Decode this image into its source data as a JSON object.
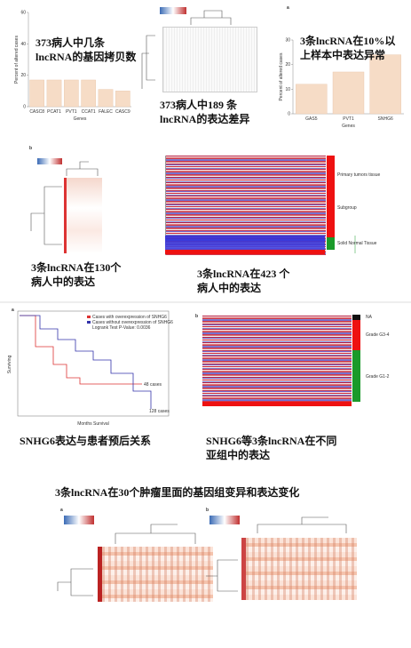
{
  "charts": [
    {
      "type": "bar",
      "y_label": "Percent of altered cases",
      "x_label": "Genes",
      "categories": [
        "CASC8",
        "PCAT1",
        "PVT1",
        "CCAT1",
        "FALEC",
        "CASC9"
      ],
      "values": [
        17,
        17,
        17,
        17,
        11,
        10
      ],
      "color": "#f6dcc6",
      "ylim": [
        0,
        60
      ],
      "yticks": [
        0,
        20,
        40,
        60
      ]
    },
    {
      "type": "bar",
      "y_label": "Percent of altered cases",
      "x_label": "Genes",
      "categories": [
        "GAS5",
        "PVT1",
        "SNHG6"
      ],
      "values": [
        12,
        17,
        24
      ],
      "color": "#f6dcc6",
      "ylim": [
        0,
        30
      ],
      "yticks": [
        0,
        10,
        20,
        30
      ]
    }
  ],
  "captions": [
    [
      "373病人中几条",
      "lncRNA的基因拷贝数"
    ],
    [
      "373病人中189 条",
      "lncRNA的表达差异"
    ],
    [
      "3条lncRNA在10%以",
      "上样本中表达异常"
    ],
    [
      "3条lncRNA在130个",
      "病人中的表达"
    ],
    [
      "3条lncRNA在423 个",
      "病人中的表达"
    ],
    [
      "SNHG6表达与患者预后关系"
    ],
    [
      "SNHG6等3条lncRNA在不同",
      "亚组中的表达"
    ],
    [
      "3条lncRNA在30个肿瘤里面的基因组变异和表达变化"
    ]
  ],
  "panel_labels": [
    "a",
    "b",
    "a",
    "b",
    "a",
    "b"
  ],
  "tissue_legend": [
    "Primary tumors tissue",
    "Subgroup",
    "Solid Normal Tissue"
  ],
  "grade_legend": [
    "NA",
    "Grade G3-4",
    "Grade G1-2"
  ],
  "survival": {
    "legend": [
      "Cases with overexpression of SNHG6",
      "Cases without overexpression of SNHG6"
    ],
    "pvalue": "Logrank Test P-Value: 0.0036",
    "x_label": "Months Survival",
    "y_label": "Surviving",
    "notes": [
      "48 cases",
      "128 cases"
    ]
  }
}
